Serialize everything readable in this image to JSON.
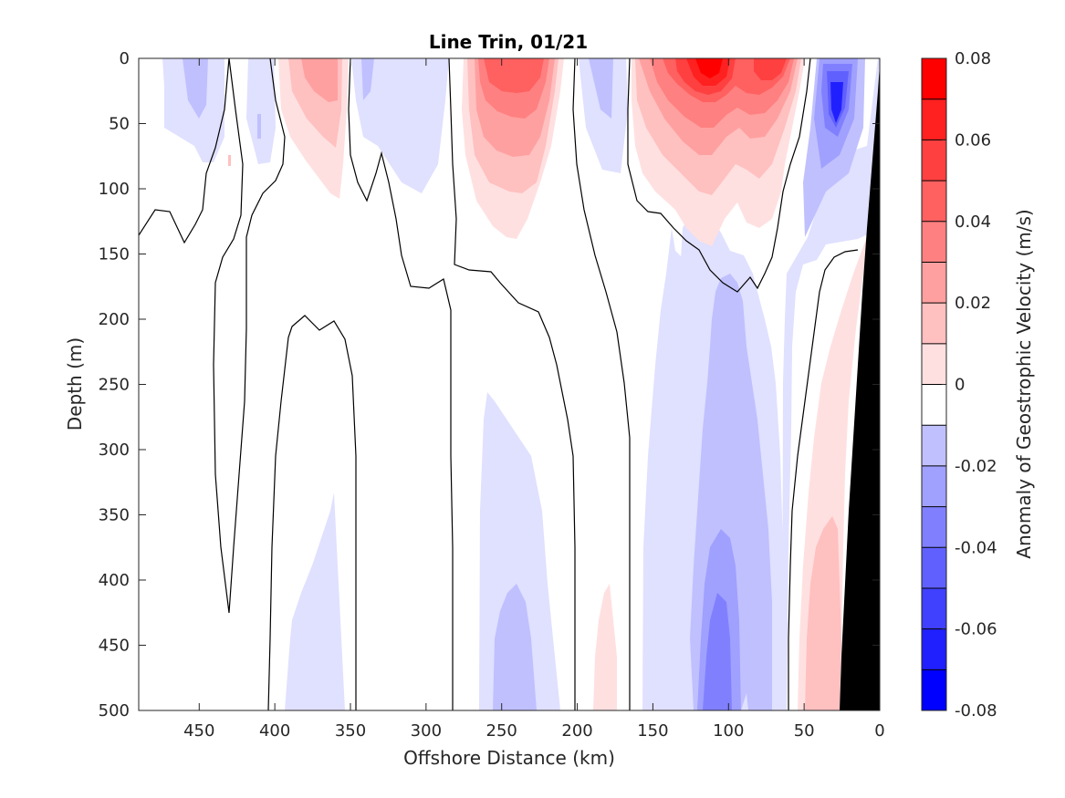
{
  "chart_data": {
    "type": "contour",
    "title": "Line Trin, 01/21",
    "xlabel": "Offshore Distance (km)",
    "ylabel": "Depth (m)",
    "colorbar_label": "Anomaly of Geostrophic Velocity (m/s)",
    "xlim": [
      490,
      0
    ],
    "ylim": [
      500,
      0
    ],
    "x_reversed": true,
    "y_reversed": true,
    "xticks": [
      450,
      400,
      350,
      300,
      250,
      200,
      150,
      100,
      50,
      0
    ],
    "yticks": [
      0,
      50,
      100,
      150,
      200,
      250,
      300,
      350,
      400,
      450,
      500
    ],
    "clim": [
      -0.08,
      0.08
    ],
    "cticks": [
      0.08,
      0.06,
      0.04,
      0.02,
      0,
      -0.02,
      -0.04,
      -0.06,
      -0.08
    ],
    "cticks_text": [
      "0.08",
      "0.06",
      "0.04",
      "0.02",
      "0",
      "-0.02",
      "-0.04",
      "-0.06",
      "-0.08"
    ],
    "colormap": {
      "levels": [
        0.08,
        0.07,
        0.06,
        0.05,
        0.04,
        0.03,
        0.02,
        0.01,
        0,
        -0.01,
        -0.02,
        -0.03,
        -0.04,
        -0.05,
        -0.06,
        -0.07,
        -0.08
      ],
      "colors": [
        "#ff0000",
        "#ff2020",
        "#ff4040",
        "#ff6060",
        "#ff8080",
        "#ffa0a0",
        "#ffc0c0",
        "#ffe0e0",
        "#ffffff",
        "#ffffff",
        "#e0e0ff",
        "#c0c0ff",
        "#a0a0ff",
        "#8080ff",
        "#6060ff",
        "#4040ff",
        "#2020ff",
        "#0000ff"
      ]
    },
    "grid": false,
    "legend": "none",
    "bathymetry_color": "#000000",
    "regions": [
      {
        "sign": "negative",
        "level": -0.02,
        "x": [
          475,
          450
        ],
        "depth": [
          0,
          80
        ]
      },
      {
        "sign": "negative",
        "level": -0.03,
        "x": [
          465,
          450
        ],
        "depth": [
          0,
          45
        ]
      },
      {
        "sign": "positive",
        "level": 0.03,
        "x": [
          390,
          355
        ],
        "depth": [
          0,
          100
        ]
      },
      {
        "sign": "positive",
        "level": 0.05,
        "x": [
          380,
          355
        ],
        "depth": [
          0,
          45
        ]
      },
      {
        "sign": "positive",
        "level": 0.04,
        "x": [
          270,
          210
        ],
        "depth": [
          0,
          115
        ]
      },
      {
        "sign": "positive",
        "level": 0.06,
        "x": [
          255,
          215
        ],
        "depth": [
          0,
          40
        ]
      },
      {
        "sign": "negative",
        "level": -0.03,
        "x": [
          195,
          175
        ],
        "depth": [
          0,
          60
        ]
      },
      {
        "sign": "positive",
        "level": 0.08,
        "x": [
          130,
          95
        ],
        "depth": [
          0,
          50
        ]
      },
      {
        "sign": "positive",
        "level": 0.07,
        "x": [
          85,
          65
        ],
        "depth": [
          0,
          30
        ]
      },
      {
        "sign": "negative",
        "level": -0.07,
        "x": [
          40,
          25
        ],
        "depth": [
          20,
          60
        ]
      },
      {
        "sign": "negative",
        "level": -0.03,
        "x": [
          120,
          95
        ],
        "depth": [
          300,
          500
        ]
      },
      {
        "sign": "negative",
        "level": -0.03,
        "x": [
          255,
          225
        ],
        "depth": [
          400,
          500
        ]
      },
      {
        "sign": "positive",
        "level": 0.03,
        "x": [
          45,
          25
        ],
        "depth": [
          350,
          500
        ]
      }
    ]
  }
}
